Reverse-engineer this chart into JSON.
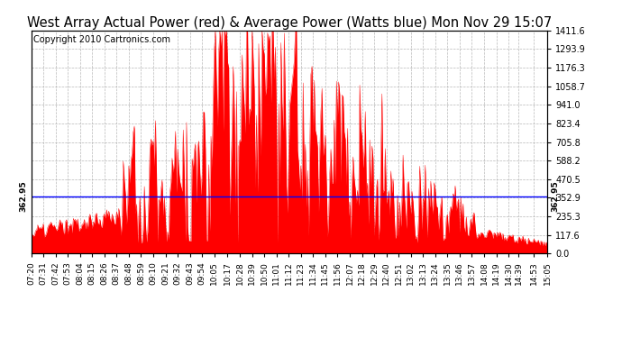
{
  "title": "West Array Actual Power (red) & Average Power (Watts blue) Mon Nov 29 15:07",
  "copyright": "Copyright 2010 Cartronics.com",
  "ymin": 0.0,
  "ymax": 1411.6,
  "yticks": [
    0.0,
    117.6,
    235.3,
    352.9,
    470.5,
    588.2,
    705.8,
    823.4,
    941.0,
    1058.7,
    1176.3,
    1293.9,
    1411.6
  ],
  "average_power": 362.95,
  "avg_label": "362.95",
  "line_color": "blue",
  "fill_color": "red",
  "background_color": "#ffffff",
  "grid_color": "#b0b0b0",
  "title_fontsize": 10.5,
  "copyright_fontsize": 7,
  "tick_fontsize": 7,
  "x_times": [
    "07:20",
    "07:31",
    "07:42",
    "07:53",
    "08:04",
    "08:15",
    "08:26",
    "08:37",
    "08:48",
    "08:59",
    "09:10",
    "09:21",
    "09:32",
    "09:43",
    "09:54",
    "10:05",
    "10:17",
    "10:28",
    "10:39",
    "10:50",
    "11:01",
    "11:12",
    "11:23",
    "11:34",
    "11:45",
    "11:56",
    "12:07",
    "12:18",
    "12:29",
    "12:40",
    "12:51",
    "13:02",
    "13:13",
    "13:24",
    "13:35",
    "13:46",
    "13:57",
    "14:08",
    "14:19",
    "14:30",
    "14:39",
    "14:53",
    "15:05"
  ]
}
